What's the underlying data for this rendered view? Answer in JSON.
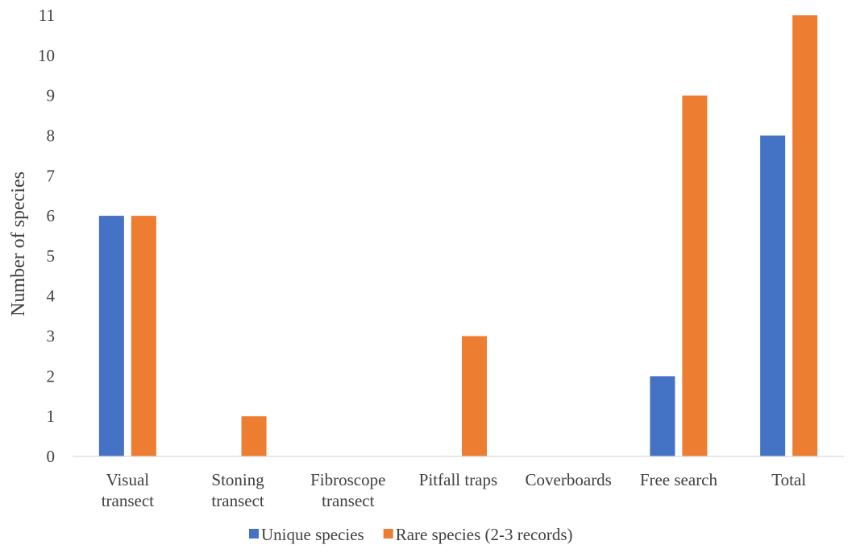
{
  "chart_data": {
    "type": "bar",
    "title": "",
    "xlabel": "",
    "ylabel": "Number of species",
    "ylim": [
      0,
      11
    ],
    "yticks": [
      0,
      1,
      2,
      3,
      4,
      5,
      6,
      7,
      8,
      9,
      10,
      11
    ],
    "grid": false,
    "legend_position": "bottom",
    "categories": [
      [
        "Visual",
        "transect"
      ],
      [
        "Stoning",
        "transect"
      ],
      [
        "Fibroscope",
        "transect"
      ],
      [
        "Pitfall traps"
      ],
      [
        "Coverboards"
      ],
      [
        "Free search"
      ],
      [
        "Total"
      ]
    ],
    "series": [
      {
        "name": "Unique species",
        "color": "#4472C4",
        "values": [
          6,
          0,
          0,
          0,
          0,
          2,
          8
        ]
      },
      {
        "name": "Rare species (2-3 records)",
        "color": "#ED7D31",
        "values": [
          6,
          1,
          0,
          3,
          0,
          9,
          11
        ]
      }
    ]
  }
}
